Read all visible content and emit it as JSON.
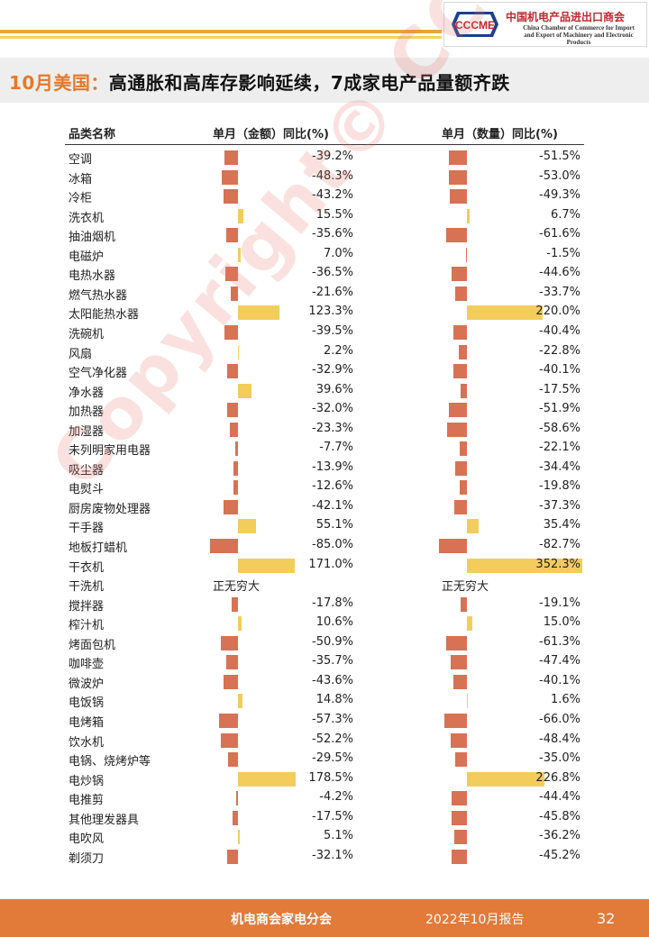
{
  "header": {
    "logo_text": "CCCME",
    "logo_cn": "中国机电产品进出口商会",
    "logo_en_1": "China Chamber of Commerce for Import",
    "logo_en_2": "and Export of Machinery and Electronic Products",
    "title_accent": "10月美国：",
    "title_main": "高通胀和高库存影响延续，7成家电产品量额齐跌"
  },
  "watermark": "Copyright© CCCME",
  "colors": {
    "negative": "#d77255",
    "positive": "#f2cd5c",
    "footer": "#e27a3a",
    "accent": "#e6782a"
  },
  "chart_data": {
    "type": "table",
    "columns": [
      "品类名称",
      "单月（金额）同比(%)",
      "单月（数量）同比(%)"
    ],
    "rows": [
      {
        "name": "空调",
        "amount": -39.2,
        "amount_text": "-39.2%",
        "qty": -51.5,
        "qty_text": "-51.5%"
      },
      {
        "name": "冰箱",
        "amount": -48.3,
        "amount_text": "-48.3%",
        "qty": -53.0,
        "qty_text": "-53.0%"
      },
      {
        "name": "冷柜",
        "amount": -43.2,
        "amount_text": "-43.2%",
        "qty": -49.3,
        "qty_text": "-49.3%"
      },
      {
        "name": "洗衣机",
        "amount": 15.5,
        "amount_text": "15.5%",
        "qty": 6.7,
        "qty_text": "6.7%"
      },
      {
        "name": "抽油烟机",
        "amount": -35.6,
        "amount_text": "-35.6%",
        "qty": -61.6,
        "qty_text": "-61.6%"
      },
      {
        "name": "电磁炉",
        "amount": 7.0,
        "amount_text": "7.0%",
        "qty": -1.5,
        "qty_text": "-1.5%"
      },
      {
        "name": "电热水器",
        "amount": -36.5,
        "amount_text": "-36.5%",
        "qty": -44.6,
        "qty_text": "-44.6%"
      },
      {
        "name": "燃气热水器",
        "amount": -21.6,
        "amount_text": "-21.6%",
        "qty": -33.7,
        "qty_text": "-33.7%"
      },
      {
        "name": "太阳能热水器",
        "amount": 123.3,
        "amount_text": "123.3%",
        "qty": 220.0,
        "qty_text": "220.0%"
      },
      {
        "name": "洗碗机",
        "amount": -39.5,
        "amount_text": "-39.5%",
        "qty": -40.4,
        "qty_text": "-40.4%"
      },
      {
        "name": "风扇",
        "amount": 2.2,
        "amount_text": "2.2%",
        "qty": -22.8,
        "qty_text": "-22.8%"
      },
      {
        "name": "空气净化器",
        "amount": -32.9,
        "amount_text": "-32.9%",
        "qty": -40.1,
        "qty_text": "-40.1%"
      },
      {
        "name": "净水器",
        "amount": 39.6,
        "amount_text": "39.6%",
        "qty": -17.5,
        "qty_text": "-17.5%"
      },
      {
        "name": "加热器",
        "amount": -32.0,
        "amount_text": "-32.0%",
        "qty": -51.9,
        "qty_text": "-51.9%"
      },
      {
        "name": "加湿器",
        "amount": -23.3,
        "amount_text": "-23.3%",
        "qty": -58.6,
        "qty_text": "-58.6%"
      },
      {
        "name": "未列明家用电器",
        "amount": -7.7,
        "amount_text": "-7.7%",
        "qty": -22.1,
        "qty_text": "-22.1%"
      },
      {
        "name": "吸尘器",
        "amount": -13.9,
        "amount_text": "-13.9%",
        "qty": -34.4,
        "qty_text": "-34.4%"
      },
      {
        "name": "电熨斗",
        "amount": -12.6,
        "amount_text": "-12.6%",
        "qty": -19.8,
        "qty_text": "-19.8%"
      },
      {
        "name": "厨房废物处理器",
        "amount": -42.1,
        "amount_text": "-42.1%",
        "qty": -37.3,
        "qty_text": "-37.3%"
      },
      {
        "name": "干手器",
        "amount": 55.1,
        "amount_text": "55.1%",
        "qty": 35.4,
        "qty_text": "35.4%"
      },
      {
        "name": "地板打蜡机",
        "amount": -85.0,
        "amount_text": "-85.0%",
        "qty": -82.7,
        "qty_text": "-82.7%"
      },
      {
        "name": "干衣机",
        "amount": 171.0,
        "amount_text": "171.0%",
        "qty": 352.3,
        "qty_text": "352.3%"
      },
      {
        "name": "干洗机",
        "amount": null,
        "amount_text": "正无穷大",
        "qty": null,
        "qty_text": "正无穷大"
      },
      {
        "name": "搅拌器",
        "amount": -17.8,
        "amount_text": "-17.8%",
        "qty": -19.1,
        "qty_text": "-19.1%"
      },
      {
        "name": "榨汁机",
        "amount": 10.6,
        "amount_text": "10.6%",
        "qty": 15.0,
        "qty_text": "15.0%"
      },
      {
        "name": "烤面包机",
        "amount": -50.9,
        "amount_text": "-50.9%",
        "qty": -61.3,
        "qty_text": "-61.3%"
      },
      {
        "name": "咖啡壶",
        "amount": -35.7,
        "amount_text": "-35.7%",
        "qty": -47.4,
        "qty_text": "-47.4%"
      },
      {
        "name": "微波炉",
        "amount": -43.6,
        "amount_text": "-43.6%",
        "qty": -40.1,
        "qty_text": "-40.1%"
      },
      {
        "name": "电饭锅",
        "amount": 14.8,
        "amount_text": "14.8%",
        "qty": 1.6,
        "qty_text": "1.6%"
      },
      {
        "name": "电烤箱",
        "amount": -57.3,
        "amount_text": "-57.3%",
        "qty": -66.0,
        "qty_text": "-66.0%"
      },
      {
        "name": "饮水机",
        "amount": -52.2,
        "amount_text": "-52.2%",
        "qty": -48.4,
        "qty_text": "-48.4%"
      },
      {
        "name": "电锅、烧烤炉等",
        "amount": -29.5,
        "amount_text": "-29.5%",
        "qty": -35.0,
        "qty_text": "-35.0%"
      },
      {
        "name": "电炒锅",
        "amount": 178.5,
        "amount_text": "178.5%",
        "qty": 226.8,
        "qty_text": "226.8%"
      },
      {
        "name": "电推剪",
        "amount": -4.2,
        "amount_text": "-4.2%",
        "qty": -44.4,
        "qty_text": "-44.4%"
      },
      {
        "name": "其他理发器具",
        "amount": -17.5,
        "amount_text": "-17.5%",
        "qty": -45.8,
        "qty_text": "-45.8%"
      },
      {
        "name": "电吹风",
        "amount": 5.1,
        "amount_text": "5.1%",
        "qty": -36.2,
        "qty_text": "-36.2%"
      },
      {
        "name": "剃须刀",
        "amount": -32.1,
        "amount_text": "-32.1%",
        "qty": -45.2,
        "qty_text": "-45.2%"
      }
    ]
  },
  "footer": {
    "org": "机电商会家电分会",
    "date": "2022年10月报告",
    "page": "32"
  }
}
